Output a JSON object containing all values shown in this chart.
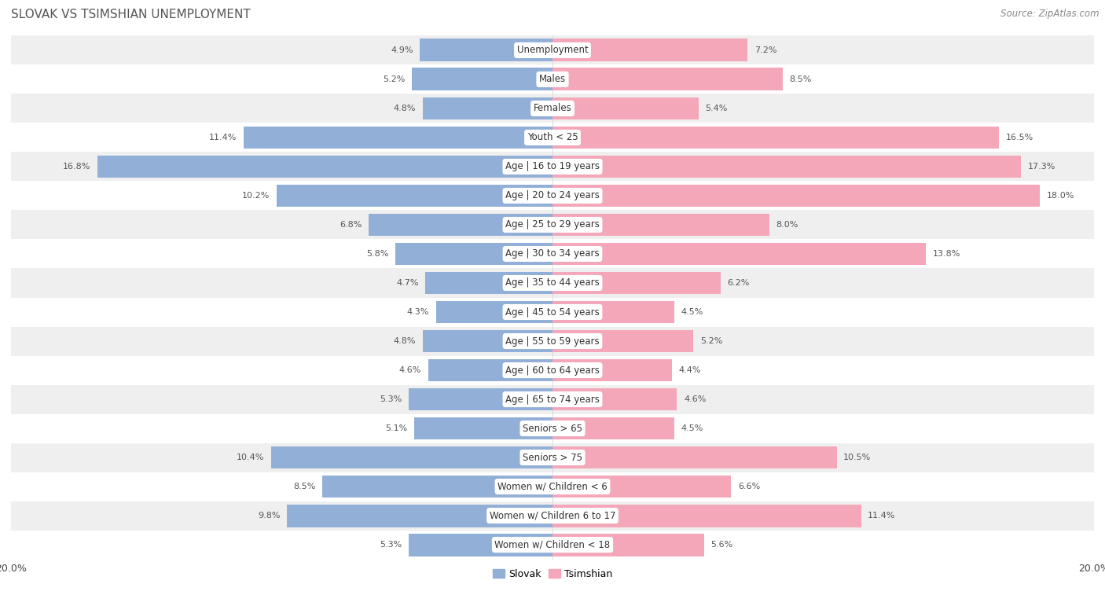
{
  "title": "SLOVAK VS TSIMSHIAN UNEMPLOYMENT",
  "source": "Source: ZipAtlas.com",
  "categories": [
    "Unemployment",
    "Males",
    "Females",
    "Youth < 25",
    "Age | 16 to 19 years",
    "Age | 20 to 24 years",
    "Age | 25 to 29 years",
    "Age | 30 to 34 years",
    "Age | 35 to 44 years",
    "Age | 45 to 54 years",
    "Age | 55 to 59 years",
    "Age | 60 to 64 years",
    "Age | 65 to 74 years",
    "Seniors > 65",
    "Seniors > 75",
    "Women w/ Children < 6",
    "Women w/ Children 6 to 17",
    "Women w/ Children < 18"
  ],
  "slovak": [
    4.9,
    5.2,
    4.8,
    11.4,
    16.8,
    10.2,
    6.8,
    5.8,
    4.7,
    4.3,
    4.8,
    4.6,
    5.3,
    5.1,
    10.4,
    8.5,
    9.8,
    5.3
  ],
  "tsimshian": [
    7.2,
    8.5,
    5.4,
    16.5,
    17.3,
    18.0,
    8.0,
    13.8,
    6.2,
    4.5,
    5.2,
    4.4,
    4.6,
    4.5,
    10.5,
    6.6,
    11.4,
    5.6
  ],
  "slovak_color": "#92afd7",
  "tsimshian_color": "#f4a7b9",
  "row_bg_light": "#efefef",
  "row_bg_white": "#ffffff",
  "max_val": 20.0,
  "bar_height": 0.78
}
